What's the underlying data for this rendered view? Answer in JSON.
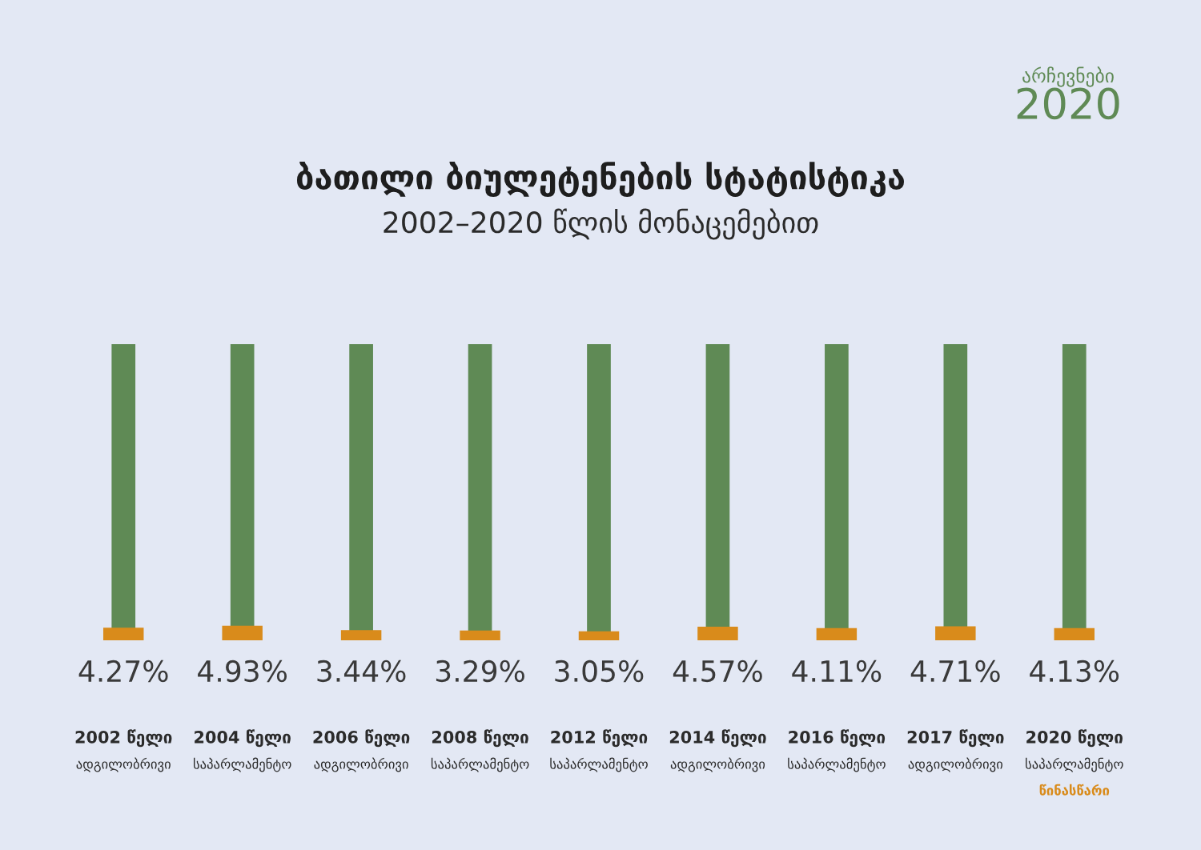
{
  "chart_data": {
    "type": "bar",
    "title": "ბათილი ბიულეტენების სტატისტიკა",
    "subtitle": "2002–2020 წლის მონაცემებით",
    "annotations": [
      "არჩევნები\n2020"
    ],
    "categories": [
      "2002 წელი\nადგილობრივი",
      "2004 წელი\nსაპარლამენტო",
      "2006 წელი\nადგილობრივი",
      "2008 წელი\nსაპარლამენტო",
      "2012 წელი\nსაპარლამენტო",
      "2014 წელი\nადგილობრივი",
      "2016 წელი\nსაპარლამენტო",
      "2017 წელი\nადგილობრივი",
      "2020 წელი\nსაპარლამენტო\nწინასწარი"
    ],
    "series": [
      {
        "color": "#5f8a55",
        "values": [
          100,
          100,
          100,
          100,
          100,
          100,
          100,
          100,
          100
        ]
      },
      {
        "color": "#d98b1b",
        "values": [
          4.27,
          4.93,
          3.44,
          3.29,
          3.05,
          4.57,
          4.11,
          4.71,
          4.13
        ],
        "value_labels": [
          "4.27%",
          "4.93%",
          "3.44%",
          "3.29%",
          "3.05%",
          "4.57%",
          "4.11%",
          "4.71%",
          "4.13%"
        ]
      }
    ],
    "ylim": [
      0,
      100
    ],
    "tick_labels": "x"
  }
}
